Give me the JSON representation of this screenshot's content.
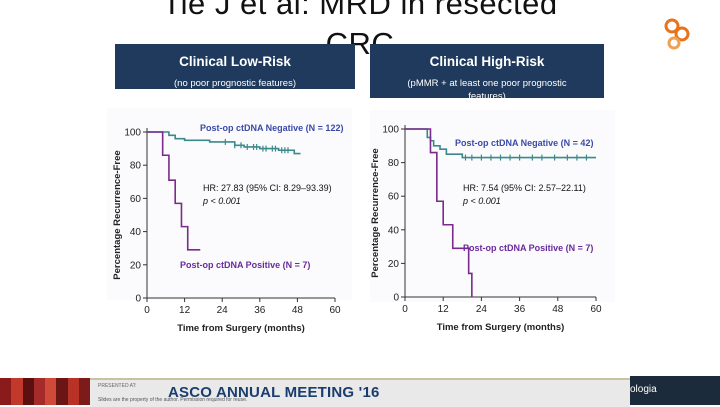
{
  "title": {
    "line1": "Tie J et al: MRD in resected",
    "line2": "CRC"
  },
  "panels": [
    {
      "heading": "Clinical Low-Risk",
      "subtitle": "(no poor prognostic features)"
    },
    {
      "heading": "Clinical High-Risk",
      "subtitle": "(pMMR + at least one poor prognostic features)"
    }
  ],
  "chart_data": [
    {
      "type": "line",
      "title": "Clinical Low-Risk",
      "xlabel": "Time from Surgery (months)",
      "ylabel": "Percentage Recurrence-Free",
      "xlim": [
        0,
        60
      ],
      "ylim": [
        0,
        100
      ],
      "xticks": [
        0,
        12,
        24,
        36,
        48,
        60
      ],
      "yticks": [
        0,
        20,
        40,
        60,
        80,
        100
      ],
      "annotation": [
        "HR: 27.83 (95% CI: 8.29–93.39)",
        "p < 0.001"
      ],
      "series": [
        {
          "name": "Post-op ctDNA Negative (N = 122)",
          "color": "#3a8a8a",
          "label_color": "#3a4aa8",
          "x": [
            0,
            6,
            7,
            9,
            12,
            20,
            24,
            28,
            31,
            36,
            38,
            42,
            44,
            47,
            49
          ],
          "y": [
            100,
            100,
            98,
            96,
            95,
            94,
            94,
            92,
            91,
            90,
            90,
            89,
            89,
            87,
            87
          ],
          "censor_x": [
            25,
            28,
            30,
            32,
            34,
            35,
            37,
            38,
            40,
            41,
            43,
            44,
            45
          ]
        },
        {
          "name": "Post-op ctDNA Positive (N = 7)",
          "color": "#7a2a8a",
          "label_color": "#6a2a9a",
          "x": [
            0,
            4,
            5,
            7,
            9,
            11,
            13,
            17
          ],
          "y": [
            100,
            100,
            86,
            71,
            57,
            43,
            29,
            29
          ],
          "censor_x": []
        }
      ]
    },
    {
      "type": "line",
      "title": "Clinical High-Risk",
      "xlabel": "Time from Surgery (months)",
      "ylabel": "Percentage Recurrence-Free",
      "xlim": [
        0,
        60
      ],
      "ylim": [
        0,
        100
      ],
      "xticks": [
        0,
        12,
        24,
        36,
        48,
        60
      ],
      "yticks": [
        0,
        20,
        40,
        60,
        80,
        100
      ],
      "annotation": [
        "HR: 7.54 (95% CI: 2.57–22.11)",
        "p < 0.001"
      ],
      "series": [
        {
          "name": "Post-op ctDNA Negative (N = 42)",
          "color": "#3a8a8a",
          "label_color": "#3a4aa8",
          "x": [
            0,
            6,
            7,
            8,
            9,
            11,
            13,
            18,
            25,
            60
          ],
          "y": [
            100,
            100,
            95,
            93,
            90,
            88,
            85,
            83,
            83,
            83
          ],
          "censor_x": [
            19,
            21,
            24,
            27,
            30,
            33,
            36,
            40,
            43,
            47,
            51,
            54,
            57
          ]
        },
        {
          "name": "Post-op ctDNA Positive (N = 7)",
          "color": "#7a2a8a",
          "label_color": "#6a2a9a",
          "x": [
            0,
            7,
            8,
            10,
            12,
            15,
            20,
            21
          ],
          "y": [
            100,
            100,
            86,
            57,
            43,
            29,
            14,
            0
          ],
          "censor_x": []
        }
      ]
    }
  ],
  "footer": {
    "asco_title": "ASCO ANNUAL MEETING '16",
    "presented_at": "PRESENTED AT:",
    "slide_note": "Slides are the property of the author. Permission required for reuse.",
    "org_text": "ologia"
  },
  "colors": {
    "panel_bg": "#1f3a5c",
    "stripe1": "#8b1a1a",
    "stripe2": "#c0392b",
    "stripe3": "#5a1010"
  }
}
